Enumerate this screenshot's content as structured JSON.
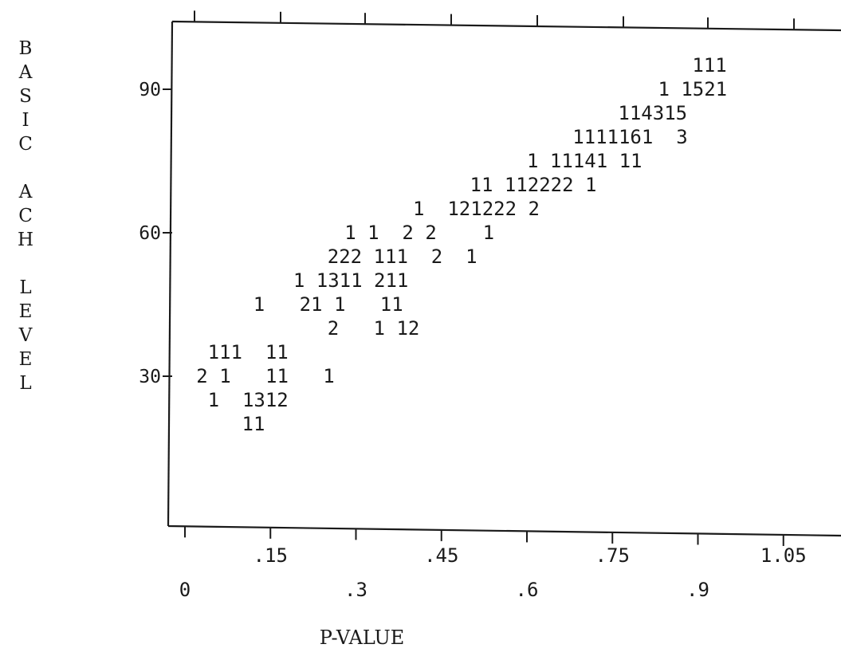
{
  "chart_data": {
    "type": "scatter",
    "xlabel": "P-VALUE",
    "ylabel": "BASIC ACH LEVEL",
    "xlim": [
      0,
      1.125
    ],
    "ylim": [
      0,
      100
    ],
    "grid": false,
    "x_tick_labels": [
      {
        "x": 0,
        "label": "0"
      },
      {
        "x": 0.15,
        "label": ".15"
      },
      {
        "x": 0.3,
        "label": ".3"
      },
      {
        "x": 0.45,
        "label": ".45"
      },
      {
        "x": 0.6,
        "label": ".6"
      },
      {
        "x": 0.75,
        "label": ".75"
      },
      {
        "x": 0.9,
        "label": ".9"
      },
      {
        "x": 1.05,
        "label": "1.05"
      }
    ],
    "y_tick_labels": [
      {
        "y": 30,
        "label": "30"
      },
      {
        "y": 60,
        "label": "60"
      },
      {
        "y": 90,
        "label": "90"
      }
    ],
    "plot_rows": [
      {
        "y": 95,
        "x": 0.89,
        "text": "111"
      },
      {
        "y": 90,
        "x": 0.83,
        "text": "1 1521"
      },
      {
        "y": 85,
        "x": 0.76,
        "text": "114315"
      },
      {
        "y": 80,
        "x": 0.68,
        "text": "1111161  3"
      },
      {
        "y": 75,
        "x": 0.6,
        "text": "1 11141 11"
      },
      {
        "y": 70,
        "x": 0.5,
        "text": "11 112222 1"
      },
      {
        "y": 65,
        "x": 0.4,
        "text": "1  121222 2"
      },
      {
        "y": 60,
        "x": 0.28,
        "text": "1 1  2 2    1"
      },
      {
        "y": 55,
        "x": 0.25,
        "text": "222 111  2  1"
      },
      {
        "y": 50,
        "x": 0.19,
        "text": "1 1311 211"
      },
      {
        "y": 45,
        "x": 0.12,
        "text": "1   21 1   11"
      },
      {
        "y": 40,
        "x": 0.25,
        "text": "2   1 12"
      },
      {
        "y": 35,
        "x": 0.04,
        "text": "111  11"
      },
      {
        "y": 30,
        "x": 0.02,
        "text": "2 1   11   1"
      },
      {
        "y": 25,
        "x": 0.04,
        "text": "1  1312"
      },
      {
        "y": 20,
        "x": 0.1,
        "text": "11"
      }
    ]
  }
}
